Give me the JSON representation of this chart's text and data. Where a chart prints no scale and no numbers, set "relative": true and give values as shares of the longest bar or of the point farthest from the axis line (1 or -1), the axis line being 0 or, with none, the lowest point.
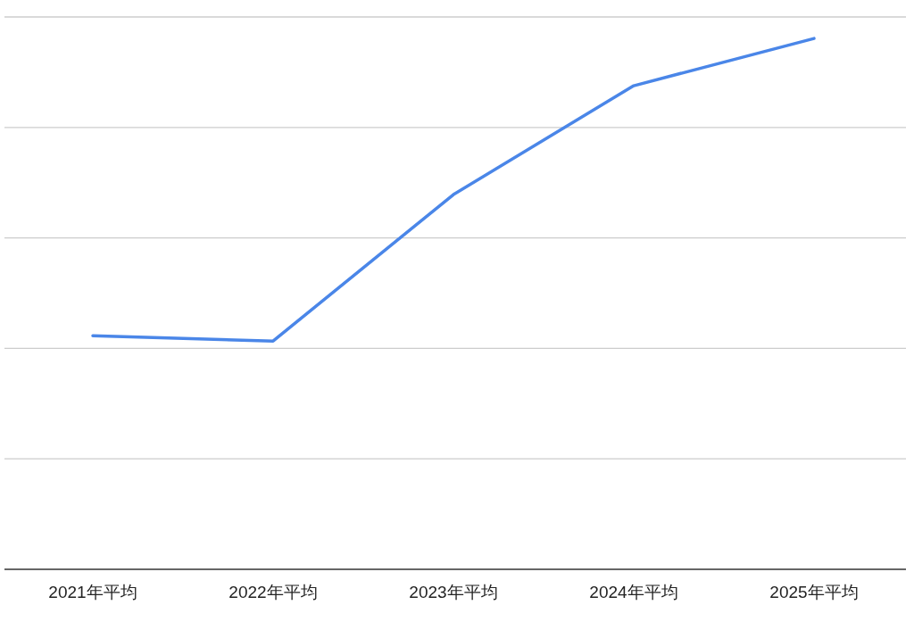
{
  "chart_data": {
    "type": "line",
    "relative": true,
    "grid": true,
    "categories": [
      "2021年平均",
      "2022年平均",
      "2023年平均",
      "2024年平均",
      "2025年平均"
    ],
    "series": [
      {
        "color": "#4a86e8",
        "values": [
          0.44,
          0.43,
          0.706,
          0.911,
          1
        ]
      }
    ]
  }
}
